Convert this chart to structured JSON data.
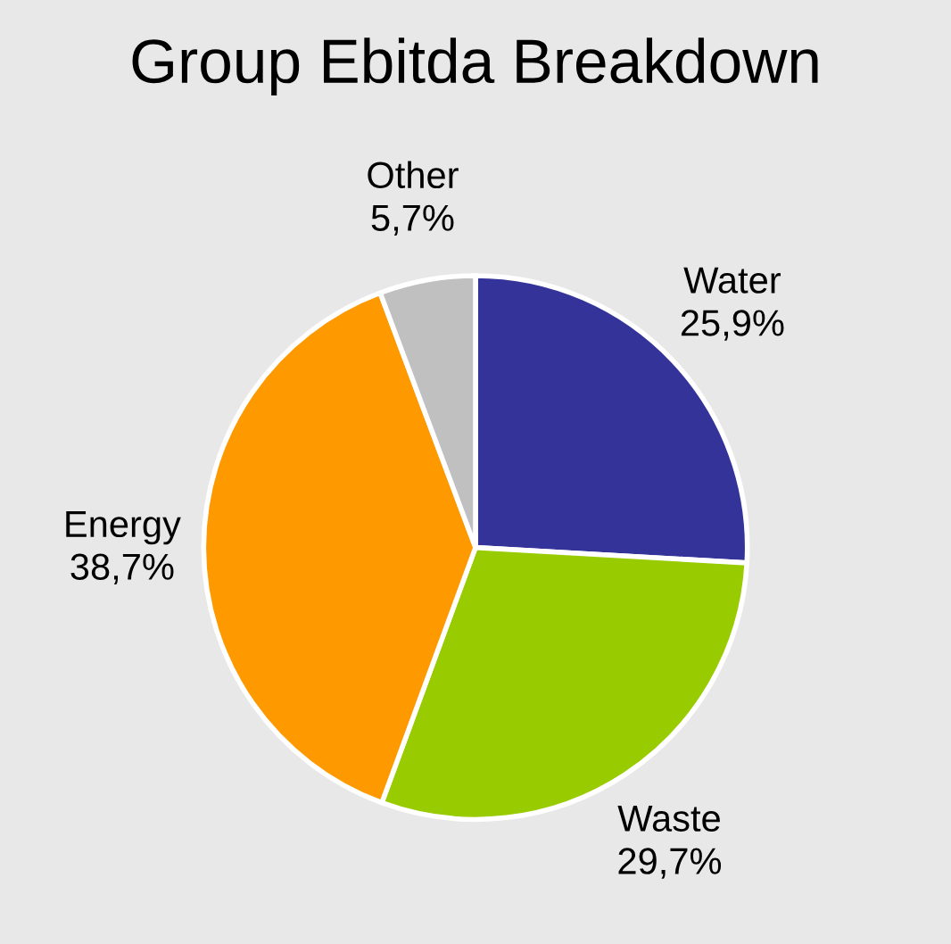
{
  "chart_data": {
    "type": "pie",
    "title": "Group Ebitda Breakdown",
    "categories": [
      "Water",
      "Waste",
      "Energy",
      "Other"
    ],
    "values": [
      25.9,
      29.7,
      38.7,
      5.7
    ],
    "value_labels": [
      "25,9%",
      "29,7%",
      "38,7%",
      "5,7%"
    ],
    "colors": [
      "#333399",
      "#99cc00",
      "#ff9900",
      "#c0c0c0"
    ]
  }
}
